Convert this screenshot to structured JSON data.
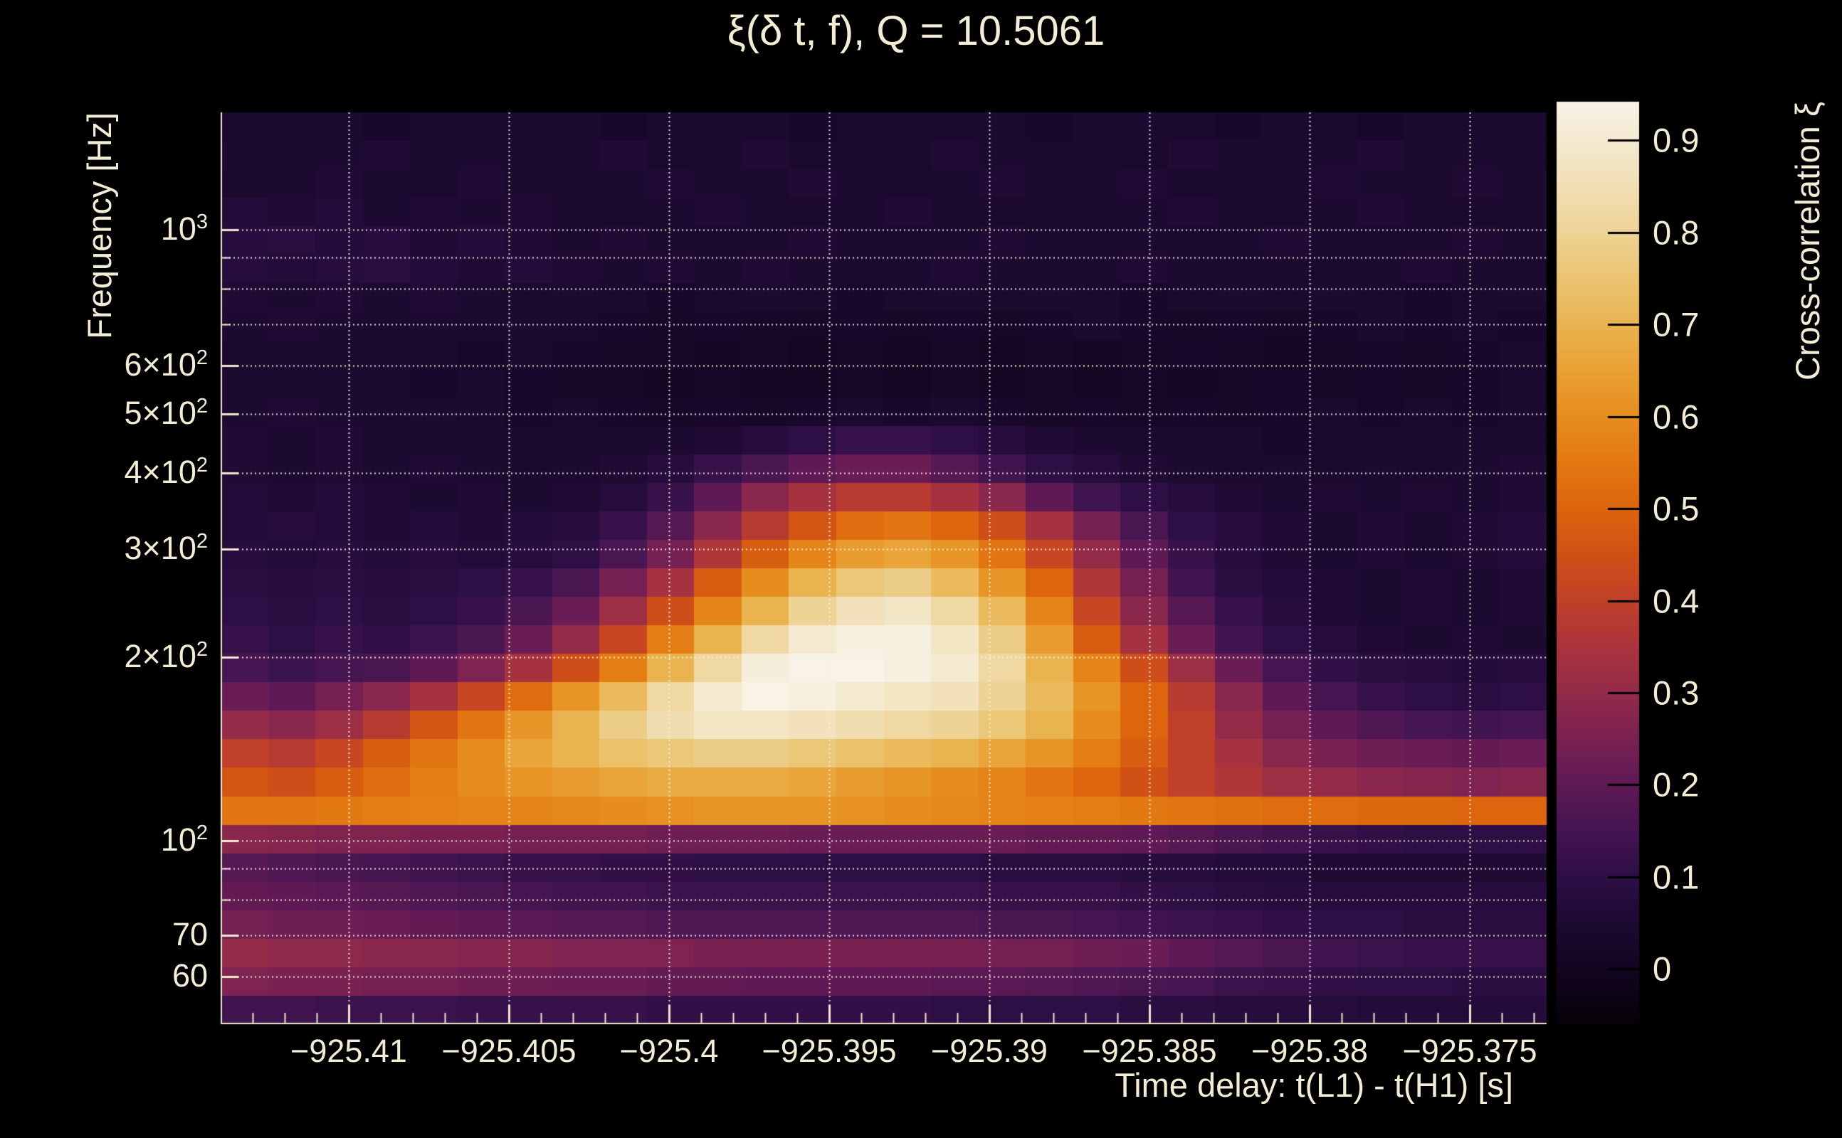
{
  "title": "ξ(δ t, f), Q = 10.5061",
  "axes": {
    "x": {
      "label": "Time delay: t(L1) - t(H1) [s]",
      "ticks": [
        {
          "value": -925.41,
          "label": "−925.41"
        },
        {
          "value": -925.405,
          "label": "−925.405"
        },
        {
          "value": -925.4,
          "label": "−925.4"
        },
        {
          "value": -925.395,
          "label": "−925.395"
        },
        {
          "value": -925.39,
          "label": "−925.39"
        },
        {
          "value": -925.385,
          "label": "−925.385"
        },
        {
          "value": -925.38,
          "label": "−925.38"
        },
        {
          "value": -925.375,
          "label": "−925.375"
        }
      ],
      "minor_tick_step": 0.001,
      "range": [
        -925.414,
        -925.3726
      ]
    },
    "y": {
      "label": "Frequency [Hz]",
      "scale": "log",
      "range_hz": [
        50.1,
        1557
      ],
      "ticks": [
        {
          "f": 1000,
          "base": "10",
          "sup": "3"
        },
        {
          "f": 600,
          "base": "6×10",
          "sup": "2"
        },
        {
          "f": 500,
          "base": "5×10",
          "sup": "2"
        },
        {
          "f": 400,
          "base": "4×10",
          "sup": "2"
        },
        {
          "f": 300,
          "base": "3×10",
          "sup": "2"
        },
        {
          "f": 200,
          "base": "2×10",
          "sup": "2"
        },
        {
          "f": 100,
          "base": "10",
          "sup": "2"
        },
        {
          "f": 70,
          "base": "70",
          "sup": ""
        },
        {
          "f": 60,
          "base": "60",
          "sup": ""
        }
      ],
      "gridline_freqs_hz": [
        60,
        70,
        80,
        90,
        100,
        200,
        300,
        400,
        500,
        600,
        700,
        800,
        900,
        1000
      ]
    },
    "colorbar": {
      "label": "Cross-correlation ξ",
      "ticks": [
        {
          "value": 0.9,
          "label": "0.9"
        },
        {
          "value": 0.8,
          "label": "0.8"
        },
        {
          "value": 0.7,
          "label": "0.7"
        },
        {
          "value": 0.6,
          "label": "0.6"
        },
        {
          "value": 0.5,
          "label": "0.5"
        },
        {
          "value": 0.4,
          "label": "0.4"
        },
        {
          "value": 0.3,
          "label": "0.3"
        },
        {
          "value": 0.2,
          "label": "0.2"
        },
        {
          "value": 0.1,
          "label": "0.1"
        },
        {
          "value": 0.0,
          "label": "0"
        }
      ],
      "range": [
        -0.06,
        0.942
      ]
    }
  },
  "chart_data": {
    "type": "heatmap",
    "title": "ξ(δ t, f), Q = 10.5061",
    "xlabel": "Time delay: t(L1) - t(H1) [s]",
    "ylabel": "Frequency [Hz]",
    "value_label": "Cross-correlation ξ",
    "x_range": [
      -925.414,
      -925.3726
    ],
    "y_range_hz": [
      50.1,
      1557
    ],
    "y_scale": "log",
    "value_range": [
      -0.06,
      0.942
    ],
    "grid_on": true,
    "legend_position": "right-colorbar",
    "description": "Q-transform cross-correlation ξ(δt,f); bright blob of ξ≈0.95 centered near δt=−925.393 s, f≈190 Hz; bright ξ≈0.6 horizontal band at ~110 Hz across all δt; fainter red bands at 60–100 Hz; dark ξ≈0 background above 400 Hz.",
    "n_cols": 28,
    "n_rows": 32,
    "rows_are_log_uniform_top_to_bottom": true,
    "values": [
      [
        0.04,
        0.05,
        0.04,
        0.03,
        0.05,
        0.04,
        0.04,
        0.05,
        0.03,
        0.04,
        0.05,
        0.04,
        0.03,
        0.04,
        0.05,
        0.04,
        0.05,
        0.03,
        0.04,
        0.05,
        0.04,
        0.03,
        0.05,
        0.04,
        0.03,
        0.05,
        0.04,
        0.04
      ],
      [
        0.05,
        0.04,
        0.05,
        0.06,
        0.04,
        0.05,
        0.04,
        0.05,
        0.06,
        0.04,
        0.05,
        0.06,
        0.04,
        0.05,
        0.04,
        0.06,
        0.05,
        0.04,
        0.05,
        0.04,
        0.06,
        0.05,
        0.04,
        0.05,
        0.06,
        0.04,
        0.05,
        0.04
      ],
      [
        0.04,
        0.05,
        0.06,
        0.05,
        0.04,
        0.06,
        0.05,
        0.04,
        0.05,
        0.06,
        0.05,
        0.04,
        0.06,
        0.05,
        0.04,
        0.05,
        0.06,
        0.04,
        0.05,
        0.06,
        0.04,
        0.05,
        0.04,
        0.06,
        0.05,
        0.04,
        0.06,
        0.05
      ],
      [
        0.07,
        0.06,
        0.07,
        0.05,
        0.06,
        0.05,
        0.06,
        0.05,
        0.04,
        0.05,
        0.06,
        0.05,
        0.04,
        0.05,
        0.06,
        0.05,
        0.04,
        0.05,
        0.04,
        0.05,
        0.06,
        0.05,
        0.04,
        0.05,
        0.06,
        0.05,
        0.04,
        0.05
      ],
      [
        0.08,
        0.09,
        0.07,
        0.08,
        0.06,
        0.07,
        0.06,
        0.05,
        0.06,
        0.05,
        0.04,
        0.05,
        0.06,
        0.05,
        0.04,
        0.05,
        0.06,
        0.05,
        0.04,
        0.05,
        0.04,
        0.05,
        0.06,
        0.05,
        0.04,
        0.05,
        0.06,
        0.05
      ],
      [
        0.08,
        0.07,
        0.08,
        0.09,
        0.07,
        0.06,
        0.07,
        0.06,
        0.05,
        0.06,
        0.05,
        0.06,
        0.05,
        0.04,
        0.05,
        0.06,
        0.05,
        0.04,
        0.05,
        0.06,
        0.05,
        0.04,
        0.05,
        0.04,
        0.05,
        0.06,
        0.05,
        0.04
      ],
      [
        0.06,
        0.05,
        0.06,
        0.05,
        0.06,
        0.05,
        0.04,
        0.05,
        0.04,
        0.03,
        0.04,
        0.05,
        0.04,
        0.03,
        0.04,
        0.05,
        0.04,
        0.05,
        0.04,
        0.03,
        0.04,
        0.05,
        0.04,
        0.05,
        0.04,
        0.03,
        0.04,
        0.05
      ],
      [
        0.05,
        0.06,
        0.05,
        0.04,
        0.05,
        0.04,
        0.05,
        0.04,
        0.03,
        0.02,
        0.03,
        0.02,
        0.02,
        0.03,
        0.02,
        0.03,
        0.02,
        0.03,
        0.04,
        0.03,
        0.02,
        0.03,
        0.02,
        0.03,
        0.04,
        0.03,
        0.04,
        0.03
      ],
      [
        0.04,
        0.05,
        0.04,
        0.05,
        0.04,
        0.03,
        0.04,
        0.03,
        0.02,
        0.02,
        0.01,
        0.02,
        0.01,
        0.02,
        0.01,
        0.02,
        0.01,
        0.02,
        0.01,
        0.02,
        0.03,
        0.02,
        0.01,
        0.02,
        0.03,
        0.02,
        0.03,
        0.04
      ],
      [
        0.05,
        0.04,
        0.05,
        0.04,
        0.03,
        0.04,
        0.03,
        0.02,
        0.02,
        0.01,
        0.02,
        0.01,
        0.01,
        0.02,
        0.01,
        0.02,
        0.01,
        0.02,
        0.01,
        0.02,
        0.01,
        0.02,
        0.03,
        0.02,
        0.03,
        0.02,
        0.03,
        0.04
      ],
      [
        0.05,
        0.06,
        0.05,
        0.04,
        0.05,
        0.04,
        0.03,
        0.04,
        0.03,
        0.02,
        0.03,
        0.02,
        0.03,
        0.04,
        0.03,
        0.04,
        0.03,
        0.02,
        0.03,
        0.02,
        0.03,
        0.02,
        0.03,
        0.04,
        0.03,
        0.04,
        0.03,
        0.04
      ],
      [
        0.06,
        0.05,
        0.06,
        0.05,
        0.04,
        0.05,
        0.04,
        0.05,
        0.04,
        0.05,
        0.06,
        0.08,
        0.1,
        0.12,
        0.12,
        0.1,
        0.08,
        0.06,
        0.05,
        0.04,
        0.05,
        0.04,
        0.03,
        0.04,
        0.05,
        0.04,
        0.05,
        0.04
      ],
      [
        0.06,
        0.05,
        0.06,
        0.05,
        0.06,
        0.05,
        0.04,
        0.05,
        0.06,
        0.08,
        0.12,
        0.16,
        0.2,
        0.22,
        0.22,
        0.18,
        0.14,
        0.1,
        0.08,
        0.06,
        0.05,
        0.04,
        0.05,
        0.04,
        0.05,
        0.04,
        0.05,
        0.06
      ],
      [
        0.07,
        0.06,
        0.07,
        0.06,
        0.05,
        0.06,
        0.05,
        0.06,
        0.08,
        0.12,
        0.2,
        0.28,
        0.34,
        0.38,
        0.38,
        0.34,
        0.28,
        0.2,
        0.14,
        0.1,
        0.08,
        0.06,
        0.05,
        0.06,
        0.05,
        0.06,
        0.05,
        0.06
      ],
      [
        0.07,
        0.08,
        0.07,
        0.06,
        0.07,
        0.06,
        0.07,
        0.08,
        0.12,
        0.18,
        0.28,
        0.38,
        0.46,
        0.52,
        0.54,
        0.5,
        0.44,
        0.34,
        0.24,
        0.16,
        0.1,
        0.08,
        0.06,
        0.05,
        0.06,
        0.05,
        0.06,
        0.07
      ],
      [
        0.08,
        0.07,
        0.08,
        0.07,
        0.08,
        0.07,
        0.08,
        0.1,
        0.16,
        0.24,
        0.36,
        0.48,
        0.58,
        0.64,
        0.66,
        0.62,
        0.54,
        0.42,
        0.3,
        0.2,
        0.12,
        0.08,
        0.06,
        0.05,
        0.06,
        0.05,
        0.06,
        0.07
      ],
      [
        0.09,
        0.08,
        0.09,
        0.08,
        0.09,
        0.1,
        0.12,
        0.16,
        0.24,
        0.34,
        0.48,
        0.6,
        0.7,
        0.76,
        0.78,
        0.72,
        0.62,
        0.5,
        0.36,
        0.24,
        0.14,
        0.09,
        0.07,
        0.06,
        0.05,
        0.06,
        0.05,
        0.06
      ],
      [
        0.1,
        0.09,
        0.1,
        0.09,
        0.1,
        0.12,
        0.16,
        0.22,
        0.32,
        0.44,
        0.58,
        0.7,
        0.8,
        0.86,
        0.88,
        0.82,
        0.72,
        0.58,
        0.42,
        0.28,
        0.18,
        0.12,
        0.08,
        0.06,
        0.05,
        0.06,
        0.05,
        0.06
      ],
      [
        0.12,
        0.1,
        0.12,
        0.11,
        0.13,
        0.16,
        0.22,
        0.3,
        0.42,
        0.56,
        0.7,
        0.82,
        0.9,
        0.93,
        0.93,
        0.88,
        0.78,
        0.64,
        0.48,
        0.34,
        0.22,
        0.14,
        0.1,
        0.08,
        0.06,
        0.05,
        0.06,
        0.05
      ],
      [
        0.15,
        0.13,
        0.15,
        0.16,
        0.2,
        0.26,
        0.34,
        0.44,
        0.56,
        0.7,
        0.82,
        0.92,
        0.95,
        0.95,
        0.93,
        0.9,
        0.82,
        0.7,
        0.58,
        0.44,
        0.32,
        0.22,
        0.15,
        0.11,
        0.09,
        0.08,
        0.07,
        0.08
      ],
      [
        0.22,
        0.2,
        0.24,
        0.28,
        0.34,
        0.42,
        0.52,
        0.62,
        0.72,
        0.82,
        0.9,
        0.94,
        0.93,
        0.9,
        0.88,
        0.86,
        0.8,
        0.72,
        0.62,
        0.5,
        0.38,
        0.28,
        0.2,
        0.15,
        0.12,
        0.1,
        0.09,
        0.1
      ],
      [
        0.3,
        0.28,
        0.32,
        0.38,
        0.46,
        0.54,
        0.62,
        0.7,
        0.78,
        0.84,
        0.88,
        0.88,
        0.86,
        0.84,
        0.82,
        0.8,
        0.76,
        0.7,
        0.6,
        0.5,
        0.4,
        0.3,
        0.24,
        0.2,
        0.17,
        0.15,
        0.14,
        0.15
      ],
      [
        0.4,
        0.38,
        0.42,
        0.48,
        0.54,
        0.6,
        0.66,
        0.7,
        0.74,
        0.76,
        0.78,
        0.78,
        0.76,
        0.74,
        0.72,
        0.7,
        0.66,
        0.62,
        0.56,
        0.48,
        0.4,
        0.34,
        0.28,
        0.25,
        0.23,
        0.22,
        0.21,
        0.22
      ],
      [
        0.46,
        0.44,
        0.48,
        0.52,
        0.56,
        0.6,
        0.62,
        0.64,
        0.66,
        0.68,
        0.68,
        0.68,
        0.66,
        0.64,
        0.62,
        0.6,
        0.58,
        0.54,
        0.5,
        0.45,
        0.4,
        0.36,
        0.32,
        0.3,
        0.28,
        0.27,
        0.26,
        0.27
      ],
      [
        0.54,
        0.54,
        0.55,
        0.56,
        0.57,
        0.58,
        0.58,
        0.59,
        0.6,
        0.61,
        0.62,
        0.62,
        0.62,
        0.61,
        0.6,
        0.59,
        0.58,
        0.57,
        0.56,
        0.55,
        0.54,
        0.53,
        0.52,
        0.52,
        0.51,
        0.51,
        0.5,
        0.5
      ],
      [
        0.28,
        0.27,
        0.26,
        0.26,
        0.25,
        0.25,
        0.24,
        0.24,
        0.24,
        0.23,
        0.23,
        0.23,
        0.22,
        0.22,
        0.22,
        0.22,
        0.22,
        0.21,
        0.21,
        0.2,
        0.18,
        0.16,
        0.14,
        0.12,
        0.11,
        0.1,
        0.1,
        0.1
      ],
      [
        0.18,
        0.17,
        0.16,
        0.15,
        0.14,
        0.13,
        0.12,
        0.12,
        0.11,
        0.11,
        0.1,
        0.1,
        0.1,
        0.1,
        0.1,
        0.1,
        0.09,
        0.09,
        0.09,
        0.08,
        0.08,
        0.07,
        0.07,
        0.06,
        0.06,
        0.06,
        0.06,
        0.06
      ],
      [
        0.21,
        0.2,
        0.19,
        0.18,
        0.17,
        0.16,
        0.15,
        0.14,
        0.14,
        0.13,
        0.13,
        0.13,
        0.13,
        0.13,
        0.13,
        0.13,
        0.12,
        0.12,
        0.12,
        0.11,
        0.1,
        0.09,
        0.08,
        0.08,
        0.08,
        0.08,
        0.08,
        0.08
      ],
      [
        0.24,
        0.23,
        0.23,
        0.22,
        0.21,
        0.2,
        0.19,
        0.18,
        0.18,
        0.17,
        0.17,
        0.17,
        0.17,
        0.17,
        0.17,
        0.17,
        0.16,
        0.16,
        0.15,
        0.14,
        0.13,
        0.12,
        0.11,
        0.1,
        0.1,
        0.09,
        0.09,
        0.09
      ],
      [
        0.3,
        0.29,
        0.29,
        0.28,
        0.28,
        0.27,
        0.27,
        0.26,
        0.26,
        0.26,
        0.25,
        0.25,
        0.25,
        0.25,
        0.25,
        0.25,
        0.24,
        0.24,
        0.23,
        0.22,
        0.2,
        0.18,
        0.16,
        0.14,
        0.13,
        0.12,
        0.12,
        0.12
      ],
      [
        0.26,
        0.25,
        0.25,
        0.24,
        0.24,
        0.23,
        0.23,
        0.22,
        0.22,
        0.21,
        0.21,
        0.2,
        0.2,
        0.2,
        0.2,
        0.19,
        0.19,
        0.18,
        0.17,
        0.16,
        0.15,
        0.13,
        0.12,
        0.11,
        0.1,
        0.1,
        0.09,
        0.09
      ],
      [
        0.14,
        0.14,
        0.13,
        0.13,
        0.13,
        0.12,
        0.12,
        0.12,
        0.12,
        0.11,
        0.11,
        0.11,
        0.11,
        0.11,
        0.11,
        0.1,
        0.1,
        0.1,
        0.1,
        0.09,
        0.09,
        0.08,
        0.08,
        0.08,
        0.07,
        0.07,
        0.07,
        0.07
      ]
    ],
    "colormap": {
      "name": "inferno-like (black-purple-red-orange-cream-white)",
      "stops": [
        [
          -0.06,
          "#070109"
        ],
        [
          0.0,
          "#130621"
        ],
        [
          0.05,
          "#1d0a31"
        ],
        [
          0.1,
          "#2d0f45"
        ],
        [
          0.15,
          "#451551"
        ],
        [
          0.2,
          "#5f1a55"
        ],
        [
          0.25,
          "#7a2152"
        ],
        [
          0.3,
          "#942b49"
        ],
        [
          0.35,
          "#ab343d"
        ],
        [
          0.4,
          "#c0402a"
        ],
        [
          0.45,
          "#d05115"
        ],
        [
          0.5,
          "#dc650e"
        ],
        [
          0.55,
          "#e37912"
        ],
        [
          0.6,
          "#e78d1e"
        ],
        [
          0.65,
          "#e9a134"
        ],
        [
          0.7,
          "#e9b450"
        ],
        [
          0.75,
          "#ebc471"
        ],
        [
          0.8,
          "#edd395"
        ],
        [
          0.85,
          "#f1dfb5"
        ],
        [
          0.9,
          "#f4ead0"
        ],
        [
          0.942,
          "#f8f3e6"
        ]
      ]
    }
  },
  "style_colors": {
    "background": "#000000",
    "text": "#f3edd6",
    "axis": "#f0e8d0",
    "gridline": "#f7f0dc"
  }
}
